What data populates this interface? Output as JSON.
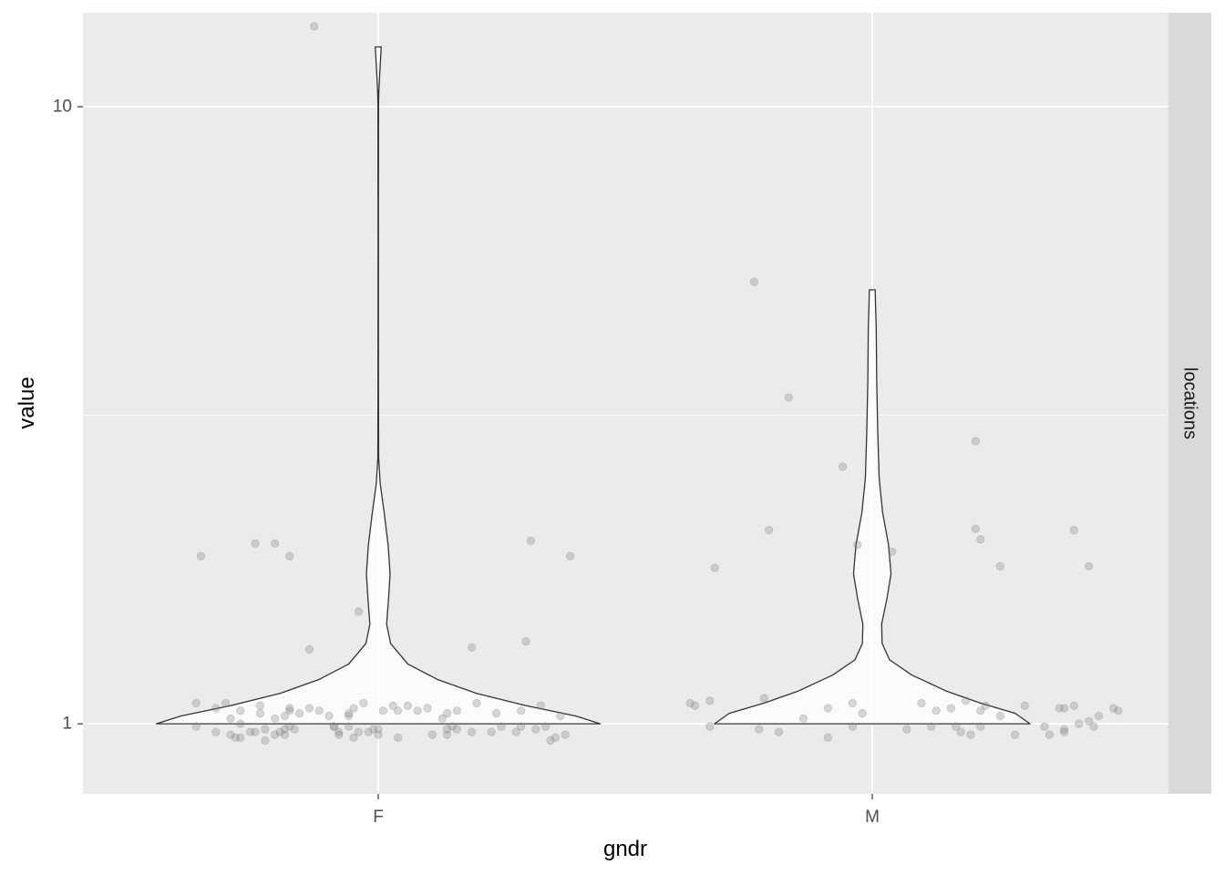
{
  "chart_data": {
    "type": "violin",
    "xlabel": "gndr",
    "ylabel": "value",
    "y_scale": "log10",
    "ylim": [
      0.77,
      14.2
    ],
    "y_ticks": [
      1,
      10
    ],
    "y_tick_labels": [
      "1",
      "10"
    ],
    "categories": [
      "F",
      "M"
    ],
    "facet_label": "locations",
    "grid": true,
    "colors": {
      "panel_bg": "#ebebeb",
      "grid": "#ffffff",
      "strip_bg": "#d9d9d9",
      "violin_fill": "#ffffff",
      "violin_stroke": "#333333",
      "point": "#808080"
    },
    "violins": [
      {
        "category": "F",
        "profile": [
          [
            1.0,
            0.45
          ],
          [
            1.03,
            0.4
          ],
          [
            1.07,
            0.3
          ],
          [
            1.12,
            0.2
          ],
          [
            1.18,
            0.12
          ],
          [
            1.25,
            0.06
          ],
          [
            1.35,
            0.025
          ],
          [
            1.45,
            0.017
          ],
          [
            1.6,
            0.021
          ],
          [
            1.75,
            0.024
          ],
          [
            1.95,
            0.02
          ],
          [
            2.2,
            0.012
          ],
          [
            2.45,
            0.004
          ],
          [
            2.7,
            0.0008
          ],
          [
            3.5,
            0.0005
          ],
          [
            6.0,
            0.0004
          ],
          [
            10.0,
            0.0006
          ],
          [
            10.6,
            0.0012
          ],
          [
            11.5,
            0.0035
          ],
          [
            12.5,
            0.006
          ]
        ]
      },
      {
        "category": "M",
        "profile": [
          [
            1.0,
            0.32
          ],
          [
            1.04,
            0.29
          ],
          [
            1.08,
            0.22
          ],
          [
            1.13,
            0.15
          ],
          [
            1.2,
            0.08
          ],
          [
            1.27,
            0.035
          ],
          [
            1.35,
            0.02
          ],
          [
            1.45,
            0.019
          ],
          [
            1.6,
            0.03
          ],
          [
            1.75,
            0.038
          ],
          [
            1.95,
            0.033
          ],
          [
            2.2,
            0.021
          ],
          [
            2.5,
            0.014
          ],
          [
            3.0,
            0.011
          ],
          [
            3.6,
            0.009
          ],
          [
            4.4,
            0.008
          ],
          [
            4.8,
            0.0065
          ],
          [
            5.05,
            0.006
          ]
        ]
      }
    ],
    "series": [
      {
        "name": "F",
        "points": [
          [
            -0.31,
            1.08
          ],
          [
            -0.28,
            1.0
          ],
          [
            -0.18,
            1.05
          ],
          [
            -0.14,
            1.32
          ],
          [
            -0.12,
            1.05
          ],
          [
            -0.04,
            1.52
          ],
          [
            0.08,
            1.05
          ],
          [
            0.1,
            1.06
          ],
          [
            0.19,
            1.33
          ],
          [
            0.3,
            1.36
          ],
          [
            -0.3,
            1.02
          ],
          [
            -0.24,
            1.04
          ],
          [
            -0.06,
            1.03
          ],
          [
            0.04,
            1.05
          ],
          [
            0.14,
            1.04
          ],
          [
            -0.36,
            1.87
          ],
          [
            -0.25,
            1.96
          ],
          [
            -0.21,
            1.96
          ],
          [
            -0.18,
            1.87
          ],
          [
            -0.13,
            13.5
          ],
          [
            0.31,
            1.98
          ],
          [
            0.39,
            1.87
          ],
          [
            -0.37,
            1.08
          ],
          [
            -0.33,
            1.06
          ],
          [
            -0.28,
            1.05
          ],
          [
            -0.24,
            1.07
          ],
          [
            -0.21,
            1.02
          ],
          [
            -0.19,
            1.03
          ],
          [
            -0.18,
            1.06
          ],
          [
            -0.16,
            1.04
          ],
          [
            -0.14,
            1.06
          ],
          [
            -0.1,
            1.03
          ],
          [
            -0.06,
            1.04
          ],
          [
            -0.05,
            1.06
          ],
          [
            -0.03,
            1.08
          ],
          [
            0.01,
            1.05
          ],
          [
            0.03,
            1.07
          ],
          [
            0.06,
            1.07
          ],
          [
            0.13,
            1.02
          ],
          [
            0.16,
            1.05
          ],
          [
            0.2,
            1.08
          ],
          [
            0.24,
            1.04
          ],
          [
            0.29,
            1.05
          ],
          [
            0.33,
            1.07
          ],
          [
            0.37,
            1.03
          ],
          [
            -0.37,
            0.99
          ],
          [
            -0.33,
            0.97
          ],
          [
            -0.3,
            0.96
          ],
          [
            -0.29,
            0.95
          ],
          [
            -0.28,
            0.95
          ],
          [
            -0.26,
            0.97
          ],
          [
            -0.25,
            0.97
          ],
          [
            -0.23,
            0.98
          ],
          [
            -0.23,
            0.94
          ],
          [
            -0.21,
            0.96
          ],
          [
            -0.2,
            0.97
          ],
          [
            -0.19,
            0.98
          ],
          [
            -0.19,
            0.96
          ],
          [
            -0.18,
            0.99
          ],
          [
            -0.17,
            0.98
          ],
          [
            -0.09,
            0.99
          ],
          [
            -0.09,
            0.99
          ],
          [
            -0.08,
            0.96
          ],
          [
            -0.08,
            0.97
          ],
          [
            -0.06,
            0.99
          ],
          [
            -0.05,
            0.95
          ],
          [
            -0.04,
            0.97
          ],
          [
            -0.02,
            0.97
          ],
          [
            -0.01,
            0.98
          ],
          [
            0.0,
            0.98
          ],
          [
            0.0,
            0.96
          ],
          [
            0.04,
            0.95
          ],
          [
            0.11,
            0.96
          ],
          [
            0.14,
            0.98
          ],
          [
            0.14,
            0.96
          ],
          [
            0.15,
            0.99
          ],
          [
            0.16,
            0.98
          ],
          [
            0.19,
            0.97
          ],
          [
            0.23,
            0.97
          ],
          [
            0.25,
            0.99
          ],
          [
            0.28,
            0.97
          ],
          [
            0.29,
            0.99
          ],
          [
            0.32,
            0.98
          ],
          [
            0.34,
            0.99
          ],
          [
            0.35,
            0.94
          ],
          [
            0.36,
            0.95
          ],
          [
            0.38,
            0.96
          ]
        ]
      },
      {
        "name": "M",
        "points": [
          [
            -0.37,
            1.08
          ],
          [
            -0.36,
            1.07
          ],
          [
            -0.33,
            1.09
          ],
          [
            -0.22,
            1.1
          ],
          [
            -0.14,
            1.02
          ],
          [
            -0.09,
            1.06
          ],
          [
            -0.04,
            1.08
          ],
          [
            -0.02,
            1.04
          ],
          [
            0.1,
            1.08
          ],
          [
            0.13,
            1.05
          ],
          [
            0.16,
            1.06
          ],
          [
            0.19,
            1.09
          ],
          [
            0.22,
            1.05
          ],
          [
            0.23,
            1.07
          ],
          [
            0.26,
            1.03
          ],
          [
            0.31,
            1.07
          ],
          [
            0.38,
            1.06
          ],
          [
            0.41,
            1.07
          ],
          [
            0.46,
            1.03
          ],
          [
            0.49,
            1.06
          ],
          [
            0.5,
            1.05
          ],
          [
            -0.32,
            1.79
          ],
          [
            -0.24,
            5.2
          ],
          [
            -0.21,
            2.06
          ],
          [
            -0.17,
            3.38
          ],
          [
            -0.06,
            2.61
          ],
          [
            -0.03,
            1.95
          ],
          [
            0.04,
            1.9
          ],
          [
            0.22,
            1.99
          ],
          [
            0.21,
            2.07
          ],
          [
            0.26,
            1.8
          ],
          [
            0.41,
            2.06
          ],
          [
            0.44,
            1.8
          ],
          [
            0.21,
            2.87
          ],
          [
            -0.33,
            0.99
          ],
          [
            -0.23,
            0.98
          ],
          [
            -0.19,
            0.97
          ],
          [
            -0.09,
            0.95
          ],
          [
            -0.04,
            0.99
          ],
          [
            0.07,
            0.98
          ],
          [
            0.12,
            0.99
          ],
          [
            0.17,
            0.99
          ],
          [
            0.18,
            0.97
          ],
          [
            0.2,
            0.96
          ],
          [
            0.22,
            0.99
          ],
          [
            0.29,
            0.96
          ],
          [
            0.35,
            0.99
          ],
          [
            0.36,
            0.96
          ],
          [
            0.39,
            0.97
          ],
          [
            0.39,
            0.98
          ],
          [
            0.42,
            1.0
          ],
          [
            0.44,
            1.01
          ],
          [
            0.45,
            0.99
          ],
          [
            0.39,
            1.06
          ]
        ]
      }
    ]
  }
}
